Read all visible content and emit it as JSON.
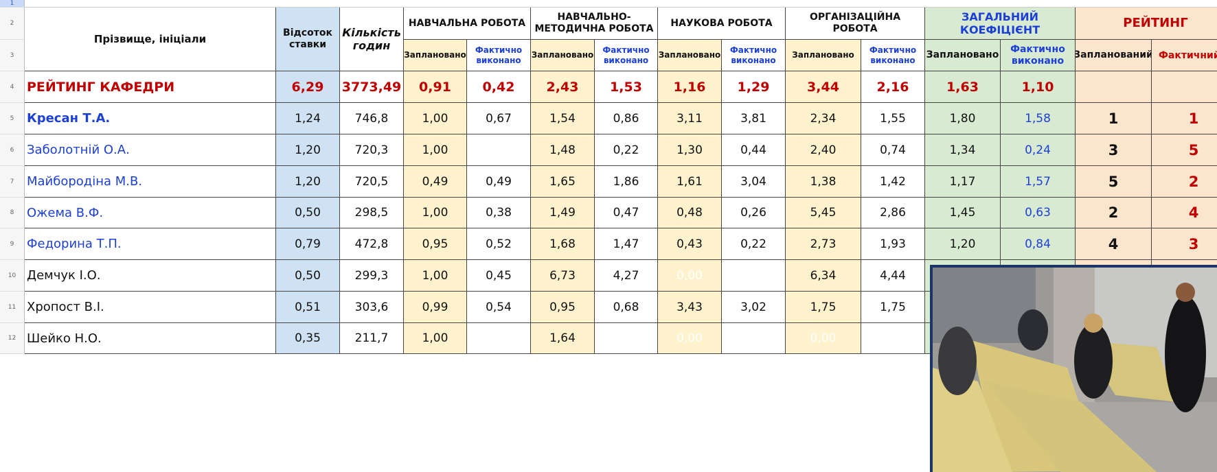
{
  "row_numbers": [
    "1",
    "2",
    "3",
    "4",
    "5",
    "6",
    "7",
    "8",
    "9",
    "10",
    "11",
    "12"
  ],
  "header": {
    "name": "Прізвище, ініціали",
    "rate": "Відсоток ставки",
    "hours": "Кількість годин",
    "groups": [
      "НАВЧАЛЬНА РОБОТА",
      "НАВЧАЛЬНО-МЕТОДИЧНА РОБОТА",
      "НАУКОВА РОБОТА",
      "ОРГАНІЗАЦІЙНА РОБОТА",
      "ЗАГАЛЬНИЙ КОЕФІЦІЄНТ",
      "РЕЙТИНГ"
    ],
    "subheaders": [
      "Заплановано",
      "Фактично виконано",
      "Заплановано",
      "Фактично виконано",
      "Заплановано",
      "Фактично виконано",
      "Заплановано",
      "Фактично виконано",
      "Заплановано",
      "Фактично виконано",
      "Запланований",
      "Фактичний"
    ]
  },
  "rows": [
    {
      "name": "РЕЙТИНГ КАФЕДРИ",
      "cells": [
        "6,29",
        "3773,49",
        "0,91",
        "0,42",
        "2,43",
        "1,53",
        "1,16",
        "1,29",
        "3,44",
        "2,16",
        "1,63",
        "1,10",
        null,
        null
      ]
    },
    {
      "name": "Кресан Т.А.",
      "cells": [
        "1,24",
        "746,8",
        "1,00",
        "0,67",
        "1,54",
        "0,86",
        "3,11",
        "3,81",
        "2,34",
        "1,55",
        "1,80",
        "1,58",
        "1",
        "1"
      ]
    },
    {
      "name": "Заболотній О.А.",
      "cells": [
        "1,20",
        "720,3",
        "1,00",
        null,
        "1,48",
        "0,22",
        "1,30",
        "0,44",
        "2,40",
        "0,74",
        "1,34",
        "0,24",
        "3",
        "5"
      ]
    },
    {
      "name": "Майбородіна М.В.",
      "cells": [
        "1,20",
        "720,5",
        "0,49",
        "0,49",
        "1,65",
        "1,86",
        "1,61",
        "3,04",
        "1,38",
        "1,42",
        "1,17",
        "1,57",
        "5",
        "2"
      ]
    },
    {
      "name": "Ожема В.Ф.",
      "cells": [
        "0,50",
        "298,5",
        "1,00",
        "0,38",
        "1,49",
        "0,47",
        "0,48",
        "0,26",
        "5,45",
        "2,86",
        "1,45",
        "0,63",
        "2",
        "4"
      ]
    },
    {
      "name": "Федорина Т.П.",
      "cells": [
        "0,79",
        "472,8",
        "0,95",
        "0,52",
        "1,68",
        "1,47",
        "0,43",
        "0,22",
        "2,73",
        "1,93",
        "1,20",
        "0,84",
        "4",
        "3"
      ]
    },
    {
      "name": "Демчук І.О.",
      "cells": [
        "0,50",
        "299,3",
        "1,00",
        "0,45",
        "6,73",
        "4,27",
        "0,00",
        null,
        "6,34",
        "4,44",
        null,
        null,
        null,
        null
      ]
    },
    {
      "name": "Хропост В.І.",
      "cells": [
        "0,51",
        "303,6",
        "0,99",
        "0,54",
        "0,95",
        "0,68",
        "3,43",
        "3,02",
        "1,75",
        "1,75",
        null,
        null,
        null,
        null
      ]
    },
    {
      "name": "Шейко Н.О.",
      "cells": [
        "0,35",
        "211,7",
        "1,00",
        null,
        "1,64",
        null,
        "0,00",
        null,
        "0,00",
        null,
        null,
        null,
        null,
        null
      ]
    }
  ]
}
